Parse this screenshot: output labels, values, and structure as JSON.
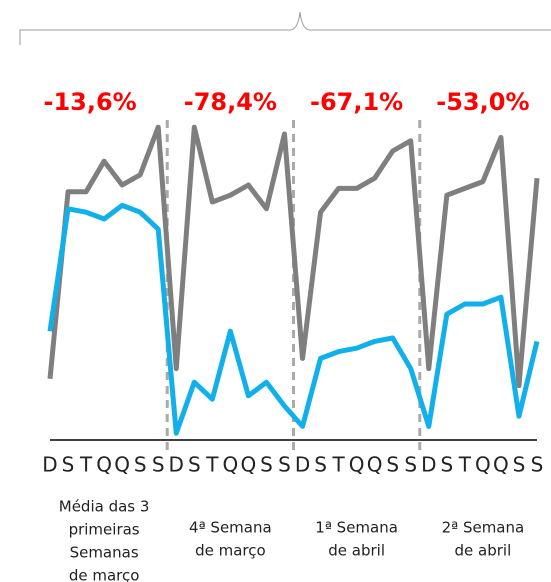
{
  "chart_data": {
    "type": "line",
    "categories": [
      "D",
      "S",
      "T",
      "Q",
      "Q",
      "S",
      "S",
      "D",
      "S",
      "T",
      "Q",
      "Q",
      "S",
      "S",
      "D",
      "S",
      "T",
      "Q",
      "Q",
      "S",
      "S",
      "D",
      "S",
      "T",
      "Q",
      "Q",
      "S",
      "S"
    ],
    "series": [
      {
        "color": "#7f7f7f",
        "values": [
          18,
          73,
          73,
          82,
          75,
          78,
          92,
          21,
          92,
          70,
          72,
          75,
          68,
          90,
          24,
          67,
          74,
          74,
          77,
          85,
          88,
          21,
          72,
          74,
          76,
          89,
          16,
          77
        ]
      },
      {
        "color": "#12b0ea",
        "values": [
          32,
          68,
          67,
          65,
          69,
          67,
          62,
          2,
          17,
          12,
          32,
          13,
          17,
          10,
          4,
          24,
          26,
          27,
          29,
          30,
          21,
          4,
          37,
          40,
          40,
          42,
          7,
          29
        ]
      }
    ],
    "ylim": [
      0,
      100
    ],
    "grid": false,
    "groups": [
      {
        "annotation": "-13,6%",
        "label": [
          "Média das 3",
          "primeiras",
          "Semanas",
          "de março"
        ]
      },
      {
        "annotation": "-78,4%",
        "label": [
          "4ª Semana",
          "de março"
        ]
      },
      {
        "annotation": "-67,1%",
        "label": [
          "1ª Semana",
          "de abril"
        ]
      },
      {
        "annotation": "-53,0%",
        "label": [
          "2ª Semana",
          "de abril"
        ]
      }
    ]
  }
}
